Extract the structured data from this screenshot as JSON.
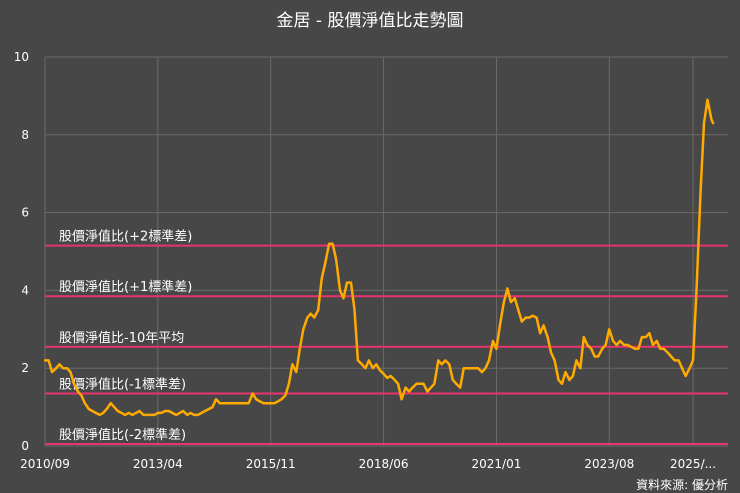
{
  "chart_data": {
    "type": "line",
    "title": "金居 - 股價淨值比走勢圖",
    "source": "資料來源: 優分析",
    "xlabel": "",
    "ylabel": "",
    "ylim": [
      0,
      10
    ],
    "y_ticks": [
      "0",
      "2",
      "4",
      "6",
      "8",
      "10"
    ],
    "x_range": [
      2010.667,
      2026.3
    ],
    "x_ticks": [
      {
        "x": 2010.667,
        "label": "2010/09"
      },
      {
        "x": 2013.25,
        "label": "2013/04"
      },
      {
        "x": 2015.833,
        "label": "2015/11"
      },
      {
        "x": 2018.417,
        "label": "2018/06"
      },
      {
        "x": 2021.0,
        "label": "2021/01"
      },
      {
        "x": 2023.583,
        "label": "2023/08"
      },
      {
        "x": 2025.5,
        "label": "2025/..."
      }
    ],
    "grid": true,
    "colors": {
      "line": "#ffaa00",
      "bands": "#e8336d",
      "grid": "#6a6a6a",
      "background": "#474747"
    },
    "reference_lines": [
      {
        "label": "股價淨值比(+2標準差)",
        "value": 5.15
      },
      {
        "label": "股價淨值比(+1標準差)",
        "value": 3.85
      },
      {
        "label": "股價淨值比-10年平均",
        "value": 2.55
      },
      {
        "label": "股價淨值比(-1標準差)",
        "value": 1.35
      },
      {
        "label": "股價淨值比(-2標準差)",
        "value": 0.05
      }
    ],
    "series": [
      {
        "values": [
          [
            2010.67,
            2.2
          ],
          [
            2010.75,
            2.2
          ],
          [
            2010.83,
            1.9
          ],
          [
            2010.92,
            2.0
          ],
          [
            2011.0,
            2.1
          ],
          [
            2011.08,
            2.0
          ],
          [
            2011.17,
            2.0
          ],
          [
            2011.25,
            1.9
          ],
          [
            2011.33,
            1.6
          ],
          [
            2011.42,
            1.4
          ],
          [
            2011.5,
            1.3
          ],
          [
            2011.58,
            1.1
          ],
          [
            2011.67,
            0.95
          ],
          [
            2011.75,
            0.9
          ],
          [
            2011.83,
            0.85
          ],
          [
            2011.92,
            0.8
          ],
          [
            2012.0,
            0.85
          ],
          [
            2012.08,
            0.95
          ],
          [
            2012.17,
            1.1
          ],
          [
            2012.25,
            1.0
          ],
          [
            2012.33,
            0.9
          ],
          [
            2012.42,
            0.85
          ],
          [
            2012.5,
            0.8
          ],
          [
            2012.58,
            0.85
          ],
          [
            2012.67,
            0.8
          ],
          [
            2012.75,
            0.85
          ],
          [
            2012.83,
            0.9
          ],
          [
            2012.92,
            0.8
          ],
          [
            2013.0,
            0.8
          ],
          [
            2013.08,
            0.8
          ],
          [
            2013.17,
            0.8
          ],
          [
            2013.25,
            0.85
          ],
          [
            2013.33,
            0.85
          ],
          [
            2013.42,
            0.9
          ],
          [
            2013.5,
            0.9
          ],
          [
            2013.58,
            0.85
          ],
          [
            2013.67,
            0.8
          ],
          [
            2013.75,
            0.85
          ],
          [
            2013.83,
            0.9
          ],
          [
            2013.92,
            0.8
          ],
          [
            2014.0,
            0.85
          ],
          [
            2014.08,
            0.8
          ],
          [
            2014.17,
            0.8
          ],
          [
            2014.25,
            0.85
          ],
          [
            2014.33,
            0.9
          ],
          [
            2014.42,
            0.95
          ],
          [
            2014.5,
            1.0
          ],
          [
            2014.58,
            1.2
          ],
          [
            2014.67,
            1.1
          ],
          [
            2014.75,
            1.1
          ],
          [
            2014.83,
            1.1
          ],
          [
            2014.92,
            1.1
          ],
          [
            2015.0,
            1.1
          ],
          [
            2015.08,
            1.1
          ],
          [
            2015.17,
            1.1
          ],
          [
            2015.25,
            1.1
          ],
          [
            2015.33,
            1.1
          ],
          [
            2015.42,
            1.35
          ],
          [
            2015.5,
            1.2
          ],
          [
            2015.58,
            1.15
          ],
          [
            2015.67,
            1.1
          ],
          [
            2015.75,
            1.1
          ],
          [
            2015.83,
            1.1
          ],
          [
            2015.92,
            1.1
          ],
          [
            2016.0,
            1.15
          ],
          [
            2016.08,
            1.2
          ],
          [
            2016.17,
            1.3
          ],
          [
            2016.25,
            1.6
          ],
          [
            2016.33,
            2.1
          ],
          [
            2016.42,
            1.9
          ],
          [
            2016.5,
            2.5
          ],
          [
            2016.58,
            3.0
          ],
          [
            2016.67,
            3.3
          ],
          [
            2016.75,
            3.4
          ],
          [
            2016.83,
            3.3
          ],
          [
            2016.92,
            3.5
          ],
          [
            2017.0,
            4.3
          ],
          [
            2017.08,
            4.7
          ],
          [
            2017.17,
            5.2
          ],
          [
            2017.25,
            5.2
          ],
          [
            2017.33,
            4.8
          ],
          [
            2017.42,
            4.0
          ],
          [
            2017.5,
            3.8
          ],
          [
            2017.58,
            4.2
          ],
          [
            2017.67,
            4.2
          ],
          [
            2017.75,
            3.5
          ],
          [
            2017.83,
            2.2
          ],
          [
            2017.92,
            2.1
          ],
          [
            2018.0,
            2.0
          ],
          [
            2018.08,
            2.2
          ],
          [
            2018.17,
            2.0
          ],
          [
            2018.25,
            2.1
          ],
          [
            2018.33,
            1.95
          ],
          [
            2018.42,
            1.85
          ],
          [
            2018.5,
            1.75
          ],
          [
            2018.58,
            1.8
          ],
          [
            2018.67,
            1.7
          ],
          [
            2018.75,
            1.6
          ],
          [
            2018.83,
            1.2
          ],
          [
            2018.92,
            1.5
          ],
          [
            2019.0,
            1.4
          ],
          [
            2019.08,
            1.5
          ],
          [
            2019.17,
            1.6
          ],
          [
            2019.25,
            1.6
          ],
          [
            2019.33,
            1.6
          ],
          [
            2019.42,
            1.4
          ],
          [
            2019.5,
            1.5
          ],
          [
            2019.58,
            1.6
          ],
          [
            2019.67,
            2.2
          ],
          [
            2019.75,
            2.1
          ],
          [
            2019.83,
            2.2
          ],
          [
            2019.92,
            2.1
          ],
          [
            2020.0,
            1.7
          ],
          [
            2020.08,
            1.6
          ],
          [
            2020.17,
            1.5
          ],
          [
            2020.25,
            2.0
          ],
          [
            2020.33,
            2.0
          ],
          [
            2020.42,
            2.0
          ],
          [
            2020.5,
            2.0
          ],
          [
            2020.58,
            2.0
          ],
          [
            2020.67,
            1.9
          ],
          [
            2020.75,
            2.0
          ],
          [
            2020.83,
            2.2
          ],
          [
            2020.92,
            2.7
          ],
          [
            2021.0,
            2.5
          ],
          [
            2021.08,
            3.1
          ],
          [
            2021.17,
            3.7
          ],
          [
            2021.25,
            4.05
          ],
          [
            2021.33,
            3.7
          ],
          [
            2021.42,
            3.8
          ],
          [
            2021.5,
            3.5
          ],
          [
            2021.58,
            3.2
          ],
          [
            2021.67,
            3.3
          ],
          [
            2021.75,
            3.3
          ],
          [
            2021.83,
            3.35
          ],
          [
            2021.92,
            3.3
          ],
          [
            2022.0,
            2.9
          ],
          [
            2022.08,
            3.1
          ],
          [
            2022.17,
            2.8
          ],
          [
            2022.25,
            2.4
          ],
          [
            2022.33,
            2.2
          ],
          [
            2022.42,
            1.7
          ],
          [
            2022.5,
            1.6
          ],
          [
            2022.58,
            1.9
          ],
          [
            2022.67,
            1.7
          ],
          [
            2022.75,
            1.8
          ],
          [
            2022.83,
            2.2
          ],
          [
            2022.92,
            2.0
          ],
          [
            2023.0,
            2.8
          ],
          [
            2023.08,
            2.6
          ],
          [
            2023.17,
            2.5
          ],
          [
            2023.25,
            2.3
          ],
          [
            2023.33,
            2.3
          ],
          [
            2023.42,
            2.5
          ],
          [
            2023.5,
            2.6
          ],
          [
            2023.58,
            3.0
          ],
          [
            2023.67,
            2.7
          ],
          [
            2023.75,
            2.6
          ],
          [
            2023.83,
            2.7
          ],
          [
            2023.92,
            2.6
          ],
          [
            2024.0,
            2.6
          ],
          [
            2024.08,
            2.55
          ],
          [
            2024.17,
            2.5
          ],
          [
            2024.25,
            2.5
          ],
          [
            2024.33,
            2.8
          ],
          [
            2024.42,
            2.8
          ],
          [
            2024.5,
            2.9
          ],
          [
            2024.58,
            2.6
          ],
          [
            2024.67,
            2.7
          ],
          [
            2024.75,
            2.5
          ],
          [
            2024.83,
            2.5
          ],
          [
            2024.92,
            2.4
          ],
          [
            2025.0,
            2.3
          ],
          [
            2025.08,
            2.2
          ],
          [
            2025.17,
            2.2
          ],
          [
            2025.25,
            2.0
          ],
          [
            2025.33,
            1.8
          ],
          [
            2025.42,
            2.0
          ],
          [
            2025.5,
            2.2
          ],
          [
            2025.58,
            4.0
          ],
          [
            2025.67,
            6.5
          ],
          [
            2025.75,
            8.3
          ],
          [
            2025.83,
            8.9
          ],
          [
            2025.92,
            8.4
          ],
          [
            2025.96,
            8.3
          ]
        ]
      }
    ]
  }
}
